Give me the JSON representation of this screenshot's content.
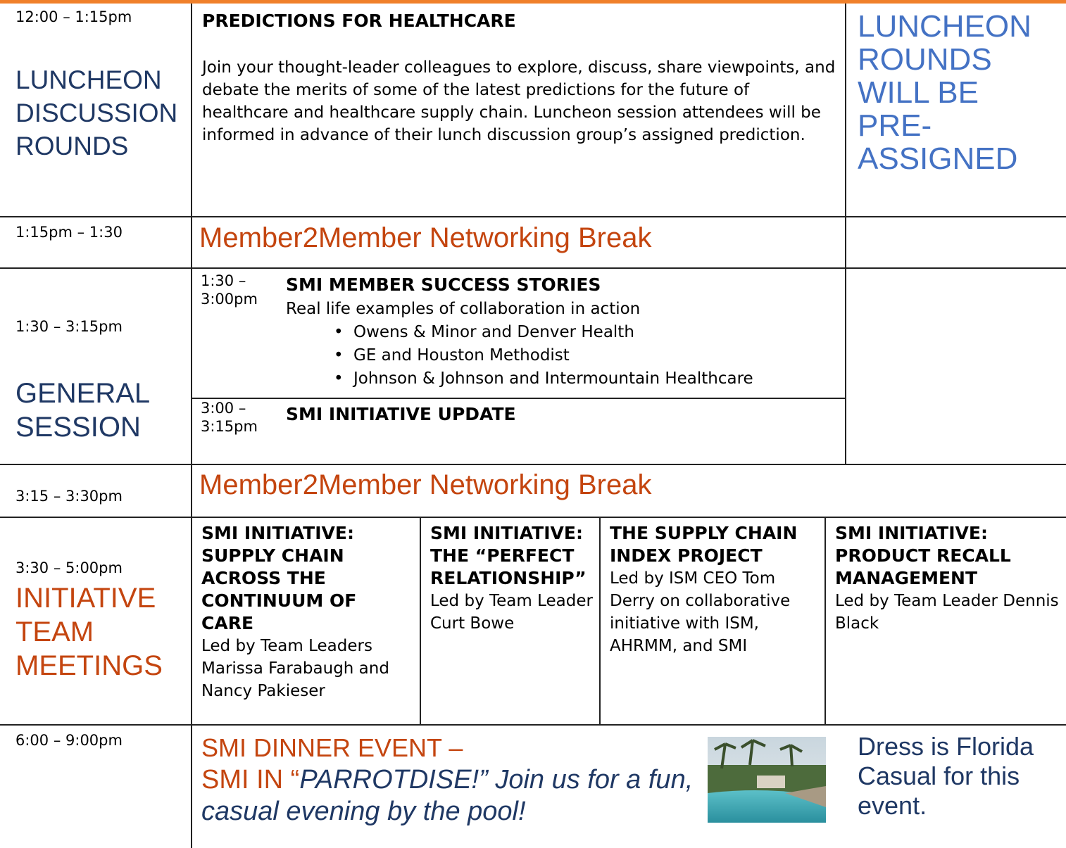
{
  "luncheon": {
    "time": "12:00 – 1:15pm",
    "label": "LUNCHEON DISCUSSION ROUNDS",
    "title": "PREDICTIONS FOR HEALTHCARE",
    "text": "Join your thought-leader colleagues to explore, discuss, share viewpoints, and debate the merits of some of the latest predictions for the future of healthcare and healthcare supply chain. Luncheon session attendees will be informed in advance of their lunch discussion group’s assigned prediction.",
    "note": "LUNCHEON ROUNDS WILL BE PRE-ASSIGNED"
  },
  "break1": {
    "time": "1:15pm – 1:30",
    "title": "Member2Member Networking Break"
  },
  "general": {
    "time": "1:30 – 3:15pm",
    "label": "GENERAL SESSION",
    "sessions": [
      {
        "time": "1:30 – 3:00pm",
        "title": "SMI MEMBER SUCCESS STORIES",
        "subtitle": "Real life examples of collaboration in action",
        "items": [
          "Owens & Minor and Denver Health",
          "GE and Houston Methodist",
          "Johnson & Johnson and Intermountain Healthcare"
        ]
      },
      {
        "time": "3:00 – 3:15pm",
        "title": "SMI INITIATIVE UPDATE"
      }
    ]
  },
  "break2": {
    "time": "3:15 – 3:30pm",
    "title": "Member2Member Networking Break"
  },
  "initiative": {
    "time": "3:30 – 5:00pm",
    "label": "INITIATIVE TEAM MEETINGS",
    "teams": [
      {
        "title": "SMI INITIATIVE: SUPPLY CHAIN ACROSS THE CONTINUUM OF CARE",
        "text": "Led by Team Leaders Marissa Farabaugh and Nancy Pakieser"
      },
      {
        "title": "SMI INITIATIVE: THE “PERFECT RELATIONSHIP”",
        "text": "Led by Team Leader Curt Bowe"
      },
      {
        "title": "THE SUPPLY CHAIN INDEX PROJECT",
        "text": "Led by ISM CEO Tom Derry on collaborative initiative with ISM, AHRMM, and SMI"
      },
      {
        "title": "SMI INITIATIVE: PRODUCT RECALL MANAGEMENT",
        "text": "Led by Team Leader Dennis Black"
      }
    ]
  },
  "dinner": {
    "time": "6:00 – 9:00pm",
    "title": "SMI DINNER EVENT –",
    "prefix": "SMI IN “",
    "highlight": "PARROTDISE!",
    "text": "” Join us for a fun, casual evening by the pool!",
    "note": "Dress is Florida Casual for this event."
  }
}
